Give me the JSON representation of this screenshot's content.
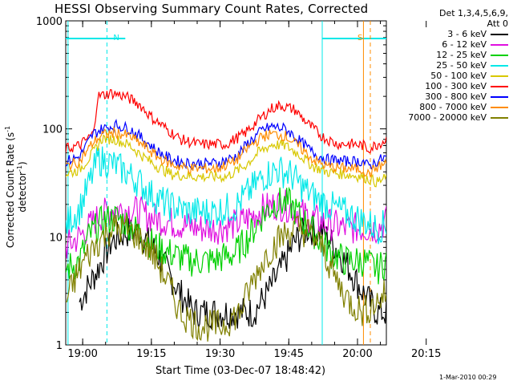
{
  "title": "HESSI Observing Summary Count Rates, Corrected",
  "stamp": "1-Mar-2010 00:29",
  "chart_data": {
    "type": "line",
    "title": "HESSI Observing Summary Count Rates, Corrected",
    "xlabel": "Start Time (03-Dec-07 18:48:42)",
    "ylabel_main": "Corrected Count Rate (s",
    "ylabel_sup1": "-1",
    "ylabel_mid": " detector",
    "ylabel_sup2": "-1",
    "ylabel_end": ")",
    "y_scale": "log",
    "ylim": [
      1,
      1000
    ],
    "y_ticks": [
      {
        "v": 1,
        "label": "1"
      },
      {
        "v": 10,
        "label": "10"
      },
      {
        "v": 100,
        "label": "100"
      },
      {
        "v": 1000,
        "label": "1000"
      }
    ],
    "xlim_min": [
      -7,
      63
    ],
    "x_ticks": [
      {
        "t": 8,
        "label": "19:00"
      },
      {
        "t": 23,
        "label": "19:15"
      },
      {
        "t": 38,
        "label": "19:30"
      },
      {
        "t": 53,
        "label": "19:45"
      },
      {
        "t": 68,
        "label": "20:00"
      },
      {
        "t": 83,
        "label": "20:15"
      }
    ],
    "x_tick_minutes_offset": 11.3,
    "legend_header": [
      "Det 1,3,4,5,6,9,",
      "Att 0"
    ],
    "series": [
      {
        "name": "3 - 6 keV",
        "color": "#000000",
        "points": [
          [
            -4,
            2.5
          ],
          [
            0,
            5
          ],
          [
            3,
            9
          ],
          [
            6,
            11
          ],
          [
            9,
            11
          ],
          [
            12,
            8
          ],
          [
            15,
            5
          ],
          [
            18,
            3
          ],
          [
            21,
            2
          ],
          [
            25,
            2
          ],
          [
            30,
            2
          ],
          [
            34,
            2
          ],
          [
            37,
            3
          ],
          [
            40,
            5
          ],
          [
            43,
            9
          ],
          [
            46,
            12
          ],
          [
            49,
            11
          ],
          [
            52,
            8
          ],
          [
            55,
            5
          ],
          [
            58,
            3
          ],
          [
            61,
            2
          ],
          [
            64,
            2
          ]
        ]
      },
      {
        "name": "6 - 12 keV",
        "color": "#e010e0",
        "points": [
          [
            -7,
            8
          ],
          [
            -4,
            10
          ],
          [
            0,
            15
          ],
          [
            3,
            18
          ],
          [
            6,
            18
          ],
          [
            9,
            17
          ],
          [
            12,
            15
          ],
          [
            15,
            14
          ],
          [
            18,
            13
          ],
          [
            22,
            12
          ],
          [
            26,
            12
          ],
          [
            30,
            13
          ],
          [
            33,
            15
          ],
          [
            36,
            18
          ],
          [
            39,
            20
          ],
          [
            42,
            19
          ],
          [
            45,
            16
          ],
          [
            48,
            14
          ],
          [
            51,
            13
          ],
          [
            54,
            12
          ],
          [
            58,
            12
          ],
          [
            61,
            12
          ],
          [
            63,
            14
          ]
        ]
      },
      {
        "name": "12 - 25 keV",
        "color": "#00d000",
        "points": [
          [
            -7,
            5
          ],
          [
            -4,
            6
          ],
          [
            -2,
            10
          ],
          [
            1,
            14
          ],
          [
            4,
            15
          ],
          [
            7,
            13
          ],
          [
            10,
            10
          ],
          [
            13,
            8
          ],
          [
            16,
            7
          ],
          [
            20,
            6
          ],
          [
            25,
            6
          ],
          [
            30,
            7
          ],
          [
            33,
            10
          ],
          [
            36,
            16
          ],
          [
            39,
            21
          ],
          [
            42,
            20
          ],
          [
            45,
            14
          ],
          [
            48,
            10
          ],
          [
            51,
            7
          ],
          [
            54,
            6
          ],
          [
            58,
            6
          ],
          [
            61,
            5
          ],
          [
            63,
            6
          ]
        ]
      },
      {
        "name": "25 - 50 keV",
        "color": "#00e8e8",
        "points": [
          [
            -7,
            13
          ],
          [
            -4,
            18
          ],
          [
            -2,
            30
          ],
          [
            0,
            52
          ],
          [
            3,
            48
          ],
          [
            6,
            40
          ],
          [
            9,
            32
          ],
          [
            12,
            24
          ],
          [
            15,
            20
          ],
          [
            20,
            17
          ],
          [
            25,
            17
          ],
          [
            30,
            19
          ],
          [
            33,
            26
          ],
          [
            36,
            36
          ],
          [
            39,
            42
          ],
          [
            42,
            38
          ],
          [
            45,
            28
          ],
          [
            48,
            22
          ],
          [
            51,
            19
          ],
          [
            55,
            16
          ],
          [
            58,
            14
          ],
          [
            61,
            12
          ],
          [
            63,
            13
          ]
        ]
      },
      {
        "name": "50 - 100 keV",
        "color": "#d8c800",
        "points": [
          [
            -7,
            38
          ],
          [
            -4,
            42
          ],
          [
            -1,
            60
          ],
          [
            1,
            82
          ],
          [
            4,
            80
          ],
          [
            7,
            70
          ],
          [
            10,
            55
          ],
          [
            13,
            45
          ],
          [
            16,
            38
          ],
          [
            22,
            36
          ],
          [
            28,
            36
          ],
          [
            32,
            45
          ],
          [
            35,
            60
          ],
          [
            38,
            72
          ],
          [
            41,
            70
          ],
          [
            44,
            58
          ],
          [
            47,
            45
          ],
          [
            50,
            40
          ],
          [
            54,
            38
          ],
          [
            58,
            36
          ],
          [
            61,
            32
          ],
          [
            63,
            35
          ]
        ]
      },
      {
        "name": "100 - 300 keV",
        "color": "#ff0000",
        "points": [
          [
            -7,
            65
          ],
          [
            -4,
            70
          ],
          [
            -1,
            90
          ],
          [
            0,
            200
          ],
          [
            3,
            215
          ],
          [
            6,
            200
          ],
          [
            9,
            170
          ],
          [
            12,
            125
          ],
          [
            15,
            100
          ],
          [
            18,
            80
          ],
          [
            22,
            72
          ],
          [
            28,
            72
          ],
          [
            32,
            90
          ],
          [
            35,
            120
          ],
          [
            38,
            155
          ],
          [
            40,
            165
          ],
          [
            43,
            150
          ],
          [
            46,
            110
          ],
          [
            49,
            85
          ],
          [
            52,
            73
          ],
          [
            56,
            72
          ],
          [
            58,
            70
          ],
          [
            59,
            65
          ],
          [
            61,
            72
          ],
          [
            63,
            80
          ]
        ]
      },
      {
        "name": "300 - 800 keV",
        "color": "#0000ff",
        "points": [
          [
            -7,
            50
          ],
          [
            -4,
            55
          ],
          [
            -1,
            90
          ],
          [
            1,
            100
          ],
          [
            4,
            108
          ],
          [
            7,
            100
          ],
          [
            10,
            80
          ],
          [
            13,
            62
          ],
          [
            16,
            52
          ],
          [
            20,
            48
          ],
          [
            26,
            48
          ],
          [
            30,
            55
          ],
          [
            33,
            75
          ],
          [
            36,
            98
          ],
          [
            38,
            105
          ],
          [
            41,
            100
          ],
          [
            44,
            78
          ],
          [
            47,
            60
          ],
          [
            50,
            52
          ],
          [
            54,
            50
          ],
          [
            58,
            50
          ],
          [
            59,
            45
          ],
          [
            61,
            50
          ],
          [
            63,
            55
          ]
        ]
      },
      {
        "name": "800 - 7000 keV",
        "color": "#ff8c00",
        "points": [
          [
            -7,
            45
          ],
          [
            -4,
            50
          ],
          [
            -1,
            75
          ],
          [
            1,
            88
          ],
          [
            4,
            92
          ],
          [
            7,
            85
          ],
          [
            10,
            70
          ],
          [
            13,
            55
          ],
          [
            16,
            47
          ],
          [
            20,
            43
          ],
          [
            26,
            43
          ],
          [
            30,
            50
          ],
          [
            33,
            68
          ],
          [
            36,
            85
          ],
          [
            38,
            90
          ],
          [
            41,
            86
          ],
          [
            44,
            68
          ],
          [
            47,
            52
          ],
          [
            50,
            45
          ],
          [
            54,
            43
          ],
          [
            58,
            42
          ],
          [
            59,
            38
          ],
          [
            61,
            44
          ],
          [
            63,
            48
          ]
        ]
      },
      {
        "name": "7000 - 20000 keV",
        "color": "#808000",
        "points": [
          [
            -7,
            2.5
          ],
          [
            -5,
            4
          ],
          [
            -3,
            6
          ],
          [
            0,
            9
          ],
          [
            3,
            12
          ],
          [
            6,
            12
          ],
          [
            9,
            10
          ],
          [
            12,
            7
          ],
          [
            15,
            4
          ],
          [
            18,
            2
          ],
          [
            22,
            1.5
          ],
          [
            27,
            1.5
          ],
          [
            31,
            2
          ],
          [
            34,
            4
          ],
          [
            37,
            7
          ],
          [
            40,
            10
          ],
          [
            43,
            12
          ],
          [
            46,
            11
          ],
          [
            49,
            8
          ],
          [
            52,
            4
          ],
          [
            55,
            2.5
          ],
          [
            58,
            2
          ],
          [
            61,
            2.5
          ],
          [
            63,
            3
          ]
        ]
      }
    ],
    "vertical_markers": [
      {
        "t": -6.5,
        "color": "#00e8e8",
        "dashed": false
      },
      {
        "t": 2,
        "color": "#00e8e8",
        "dashed": true,
        "label": "N"
      },
      {
        "t": 49,
        "color": "#00e8e8",
        "dashed": false
      },
      {
        "t": 58,
        "color": "#ff8c00",
        "dashed": false
      },
      {
        "t": 59.5,
        "color": "#ff8c00",
        "dashed": true,
        "label": "S"
      }
    ],
    "horizontal_bars": [
      {
        "t0": -7,
        "t1": 6,
        "color": "#00e8e8"
      },
      {
        "t0": 49,
        "t1": 63,
        "color": "#00e8e8"
      }
    ]
  }
}
